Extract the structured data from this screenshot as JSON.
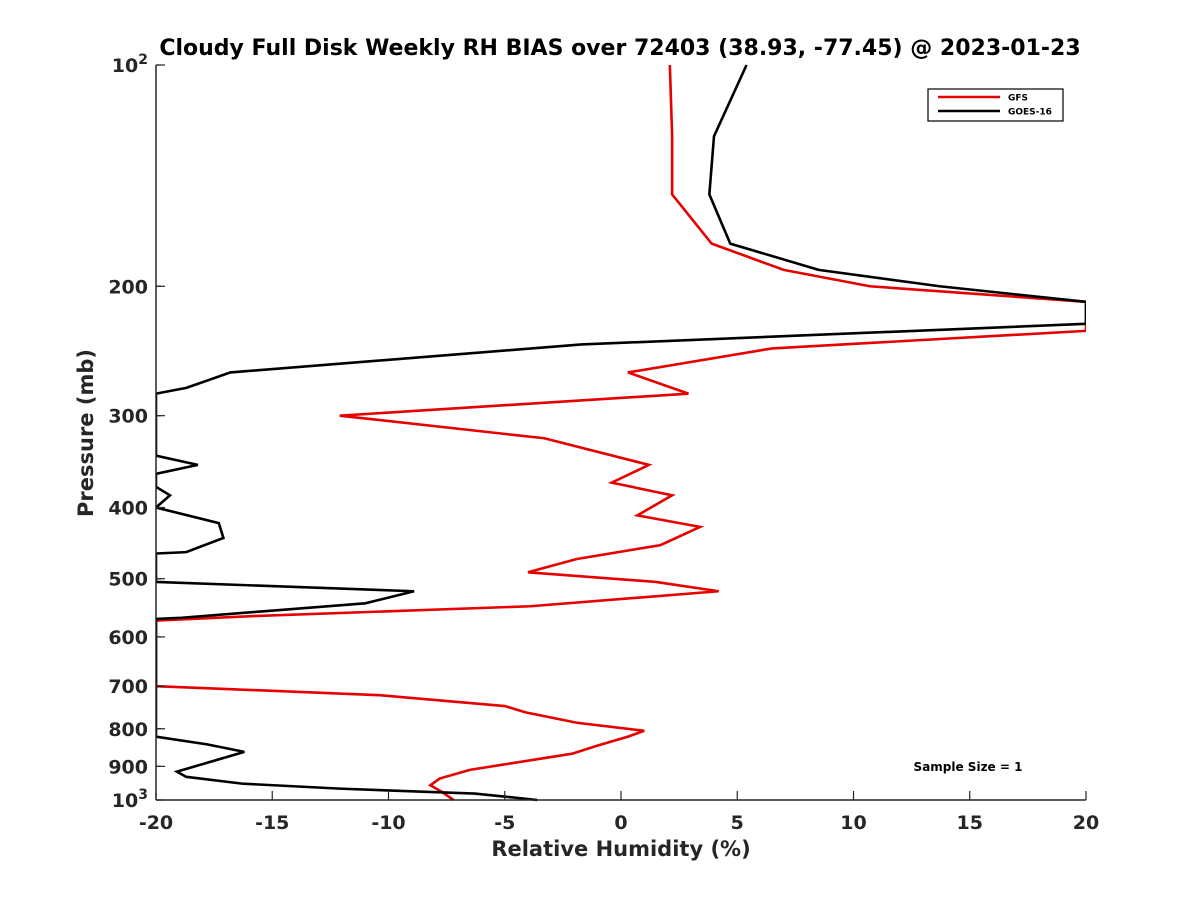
{
  "chart_data": {
    "type": "line",
    "title": "Cloudy Full Disk Weekly RH BIAS over 72403 (38.93, -77.45) @ 2023-01-23",
    "xlabel": "Relative Humidity (%)",
    "ylabel": "Pressure (mb)",
    "xlim": [
      -20,
      20
    ],
    "ylim": [
      1000,
      100
    ],
    "y_scale": "log",
    "y_reversed": true,
    "grid": false,
    "legend_position": "top-right",
    "x_ticks": [
      -20,
      -15,
      -10,
      -5,
      0,
      5,
      10,
      15,
      20
    ],
    "x_tick_labels": [
      "-20",
      "-15",
      "-10",
      "-5",
      "0",
      "5",
      "10",
      "15",
      "20"
    ],
    "y_ticks": [
      1000,
      900,
      800,
      700,
      600,
      500,
      400,
      300,
      200,
      100
    ],
    "y_tick_labels": [
      {
        "base": "10",
        "exp": "3"
      },
      {
        "base": "900"
      },
      {
        "base": "800"
      },
      {
        "base": "700"
      },
      {
        "base": "600"
      },
      {
        "base": "500"
      },
      {
        "base": "400"
      },
      {
        "base": "300"
      },
      {
        "base": "200"
      },
      {
        "base": "10",
        "exp": "2"
      }
    ],
    "annotation": "Sample Size = 1",
    "series": [
      {
        "name": "GFS",
        "color": "#e60000",
        "points": [
          [
            2.1,
            100
          ],
          [
            2.2,
            125
          ],
          [
            2.2,
            150
          ],
          [
            3.9,
            175
          ],
          [
            7.0,
            190
          ],
          [
            10.7,
            200
          ],
          [
            20.0,
            210
          ],
          [
            20.0,
            230
          ],
          [
            6.5,
            243
          ],
          [
            0.3,
            262
          ],
          [
            2.9,
            280
          ],
          [
            -12.1,
            300
          ],
          [
            -3.3,
            322
          ],
          [
            1.2,
            350
          ],
          [
            -0.4,
            370
          ],
          [
            2.2,
            385
          ],
          [
            0.7,
            410
          ],
          [
            3.4,
            425
          ],
          [
            1.7,
            450
          ],
          [
            -1.9,
            470
          ],
          [
            -4.0,
            490
          ],
          [
            1.5,
            505
          ],
          [
            4.2,
            520
          ],
          [
            -3.9,
            545
          ],
          [
            -15.8,
            562
          ],
          [
            -20.0,
            570
          ],
          [
            -20.0,
            700
          ],
          [
            -10.4,
            720
          ],
          [
            -5.0,
            745
          ],
          [
            -4.1,
            760
          ],
          [
            -1.9,
            785
          ],
          [
            1.0,
            805
          ],
          [
            0.3,
            820
          ],
          [
            -1.1,
            845
          ],
          [
            -2.1,
            865
          ],
          [
            -6.5,
            910
          ],
          [
            -7.8,
            935
          ],
          [
            -8.2,
            955
          ],
          [
            -7.7,
            975
          ],
          [
            -7.2,
            1000
          ]
        ]
      },
      {
        "name": "GOES-16",
        "color": "#000000",
        "points": [
          [
            5.4,
            100
          ],
          [
            4.0,
            125
          ],
          [
            3.8,
            150
          ],
          [
            4.7,
            175
          ],
          [
            8.5,
            190
          ],
          [
            13.7,
            200
          ],
          [
            20.0,
            210
          ],
          [
            20.0,
            225
          ],
          [
            -1.7,
            240
          ],
          [
            -16.8,
            262
          ],
          [
            -18.7,
            275
          ],
          [
            -20.0,
            280
          ],
          [
            -20.0,
            340
          ],
          [
            -18.2,
            350
          ],
          [
            -20.0,
            360
          ],
          [
            -20.0,
            375
          ],
          [
            -19.4,
            385
          ],
          [
            -20.0,
            400
          ],
          [
            -17.3,
            420
          ],
          [
            -17.1,
            440
          ],
          [
            -18.7,
            460
          ],
          [
            -20.0,
            462
          ],
          [
            -20.0,
            505
          ],
          [
            -8.9,
            520
          ],
          [
            -11.0,
            540
          ],
          [
            -18.9,
            565
          ],
          [
            -20.0,
            567
          ],
          [
            -20.0,
            820
          ],
          [
            -17.8,
            840
          ],
          [
            -16.2,
            860
          ],
          [
            -17.8,
            890
          ],
          [
            -19.1,
            915
          ],
          [
            -18.7,
            930
          ],
          [
            -16.3,
            950
          ],
          [
            -12.1,
            965
          ],
          [
            -6.3,
            980
          ],
          [
            -3.6,
            1000
          ]
        ]
      }
    ]
  }
}
